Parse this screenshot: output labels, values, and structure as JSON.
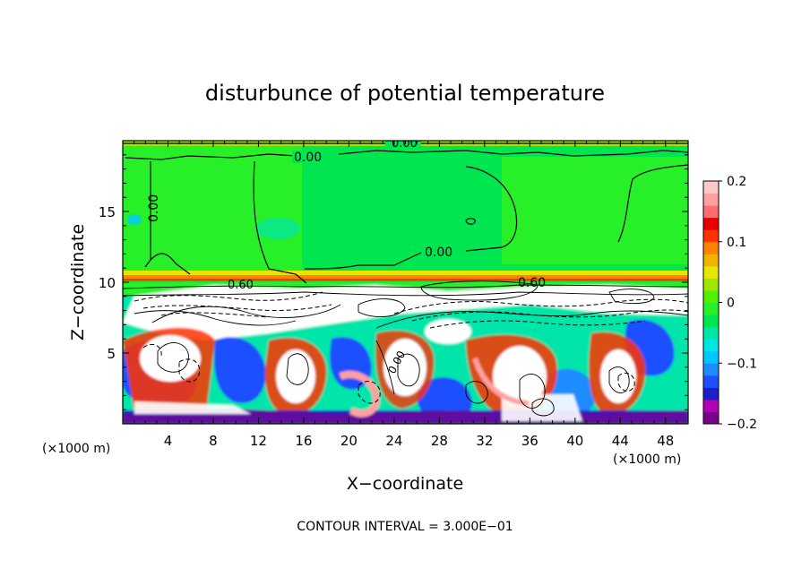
{
  "chart_data": {
    "type": "heatmap",
    "title": "disturbunce of potential temperature",
    "xlabel": "X−coordinate",
    "ylabel": "Z−coordinate",
    "x_unit_left": "(×1000 m)",
    "x_unit_right": "(×1000 m)",
    "xlim": [
      0,
      50
    ],
    "ylim": [
      0,
      20
    ],
    "x_ticks": [
      4,
      8,
      12,
      16,
      20,
      24,
      28,
      32,
      36,
      40,
      44,
      48
    ],
    "y_ticks": [
      5,
      10,
      15
    ],
    "colorbar": {
      "range": [
        -0.2,
        0.2
      ],
      "ticks": [
        0.2,
        0.1,
        0,
        -0.1,
        -0.2
      ],
      "tick_labels": [
        "0.2",
        "0.1",
        "0",
        "−0.1",
        "−0.2"
      ],
      "colors": [
        "#7a008c",
        "#b400b4",
        "#1e1ec8",
        "#1e50ff",
        "#1e8cff",
        "#00c8ff",
        "#00e6e6",
        "#00e6aa",
        "#00e650",
        "#28f028",
        "#50f000",
        "#a0e600",
        "#e6e600",
        "#f0b400",
        "#ff8200",
        "#ff3200",
        "#e60000",
        "#ff6e6e",
        "#ffa0a0",
        "#ffc8c8"
      ]
    },
    "contour_labels": [
      "0.00",
      "0.00",
      "0.00",
      "0.00",
      "0.60",
      "0.60",
      "0.00"
    ],
    "footer": "CONTOUR INTERVAL = 3.000E−01"
  }
}
